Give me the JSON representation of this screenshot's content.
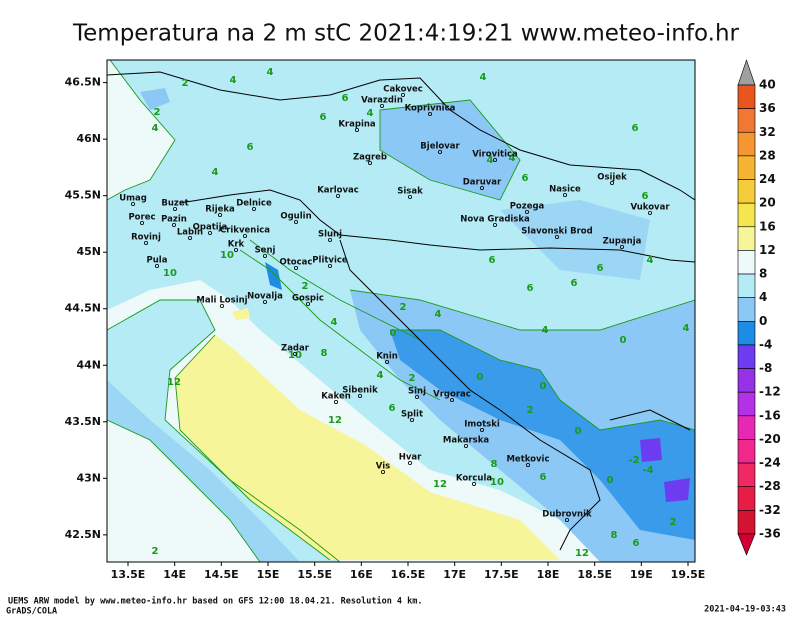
{
  "title": "Temperatura na 2 m stC 2021:4:19:21 www.meteo-info.hr",
  "map": {
    "xlim": [
      13.275,
      19.575
    ],
    "ylim": [
      42.26,
      46.7
    ],
    "xticks": [
      {
        "value": 13.5,
        "label": "13.5E"
      },
      {
        "value": 14,
        "label": "14E"
      },
      {
        "value": 14.5,
        "label": "14.5E"
      },
      {
        "value": 15,
        "label": "15E"
      },
      {
        "value": 15.5,
        "label": "15.5E"
      },
      {
        "value": 16,
        "label": "16E"
      },
      {
        "value": 16.5,
        "label": "16.5E"
      },
      {
        "value": 17,
        "label": "17E"
      },
      {
        "value": 17.5,
        "label": "17.5E"
      },
      {
        "value": 18,
        "label": "18E"
      },
      {
        "value": 18.5,
        "label": "18.5E"
      },
      {
        "value": 19,
        "label": "19E"
      },
      {
        "value": 19.5,
        "label": "19.5E"
      }
    ],
    "yticks": [
      {
        "value": 42.5,
        "label": "42.5N"
      },
      {
        "value": 43,
        "label": "43N"
      },
      {
        "value": 43.5,
        "label": "43.5N"
      },
      {
        "value": 44,
        "label": "44N"
      },
      {
        "value": 44.5,
        "label": "44.5N"
      },
      {
        "value": 45,
        "label": "45N"
      },
      {
        "value": 45.5,
        "label": "45.5N"
      },
      {
        "value": 46,
        "label": "46N"
      },
      {
        "value": 46.5,
        "label": "46.5N"
      }
    ],
    "cities": [
      "Cakovec",
      "Varazdin",
      "Koprivnica",
      "Krapina",
      "Bjelovar",
      "Virovitica",
      "Zagreb",
      "Karlovac",
      "Sisak",
      "Daruvar",
      "Osijek",
      "Nasice",
      "Pozega",
      "Vukovar",
      "Umag",
      "Buzet",
      "Rijeka",
      "Delnice",
      "Ogulin",
      "Porec",
      "Pazin",
      "Opatija",
      "Crikvenica",
      "Labin",
      "Nova Gradiska",
      "Slavonski Brod",
      "Zupanja",
      "Rovinj",
      "Krk",
      "Senj",
      "Slunj",
      "Pula",
      "Otocac",
      "Plitvice",
      "Mali Losinj",
      "Novalja",
      "Gospic",
      "Zadar",
      "Knin",
      "Sibenik",
      "Kaken",
      "Sinj",
      "Vrgorac",
      "Split",
      "Imotski",
      "Makarska",
      "Metkovic",
      "Hvar",
      "Vis",
      "Korcula",
      "Dubrovnik"
    ],
    "contour_labels": [
      2,
      4,
      4,
      2,
      4,
      6,
      6,
      4,
      6,
      4,
      4,
      6,
      4,
      4,
      6,
      6,
      6,
      6,
      6,
      6,
      4,
      2,
      4,
      2,
      4,
      0,
      4,
      0,
      4,
      0,
      0,
      0,
      2,
      12,
      12,
      12,
      10,
      10,
      12,
      2,
      -2,
      -4,
      0,
      8,
      10,
      6,
      8,
      6,
      2,
      4,
      6,
      2,
      10,
      8
    ]
  },
  "colorbar": {
    "levels": [
      40,
      36,
      32,
      28,
      24,
      20,
      16,
      12,
      8,
      4,
      0,
      -4,
      -8,
      -12,
      -16,
      -20,
      -24,
      -28,
      -32,
      -36
    ],
    "colors": [
      "#a0a0a0",
      "#e8561e",
      "#f07832",
      "#f59632",
      "#f5b432",
      "#f5cd3c",
      "#f5e650",
      "#f6f59a",
      "#eef9fa",
      "#b4ebf5",
      "#8cc8f5",
      "#1e8ce6",
      "#6e3cf0",
      "#9632e6",
      "#b432e6",
      "#e628b4",
      "#f0288c",
      "#f02864",
      "#e61e46",
      "#d21432",
      "#d20032"
    ]
  },
  "footer": {
    "credit": "UEMS ARW model by www.meteo-info.hr based on GFS 12:00 18.04.21. Resolution 4 km.",
    "software": "GrADS/COLA",
    "timestamp": "2021-04-19-03:43"
  }
}
